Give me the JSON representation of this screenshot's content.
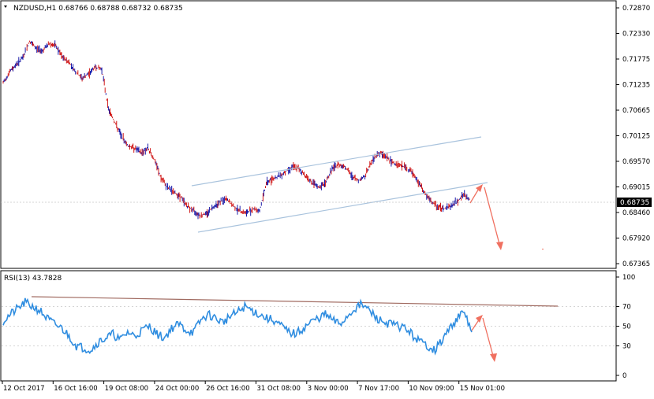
{
  "chart": {
    "symbol_info": "NZDUSD,H1  0.68766 0.68788 0.68732 0.68735",
    "current_price_label": "0.68735",
    "price_axis_ticks": [
      "0.72870",
      "0.72330",
      "0.71775",
      "0.71235",
      "0.70665",
      "0.70125",
      "0.69570",
      "0.69015",
      "0.68460",
      "0.67920",
      "0.67365"
    ],
    "time_axis_ticks": [
      "12 Oct 2017",
      "16 Oct 16:00",
      "19 Oct 08:00",
      "24 Oct 00:00",
      "26 Oct 16:00",
      "31 Oct 08:00",
      "3 Nov 00:00",
      "7 Nov 17:00",
      "10 Nov 09:00",
      "15 Nov 01:00"
    ],
    "colors": {
      "up_bar": "#1a1aa8",
      "down_bar": "#d01818",
      "channel": "#a9c3dd",
      "forecast_arrow": "#f07060",
      "rsi_line": "#2f8de0",
      "rsi_trendline": "#a06a60",
      "grid": "#c8c8c8"
    }
  },
  "rsi": {
    "label": "RSI(13) 43.7828",
    "axis_ticks": [
      "100",
      "70",
      "50",
      "30",
      "0"
    ]
  },
  "chart_data": [
    {
      "type": "line",
      "title": "NZDUSD,H1",
      "series": [
        {
          "values": [
            0.7125,
            0.715,
            0.7165,
            0.718,
            0.7215,
            0.72,
            0.7195,
            0.721,
            0.7205,
            0.718,
            0.717,
            0.715,
            0.7135,
            0.7145,
            0.716,
            0.7155,
            0.707,
            0.704,
            0.701,
            0.699,
            0.6985,
            0.6975,
            0.6985,
            0.696,
            0.692,
            0.69,
            0.689,
            0.688,
            0.686,
            0.685,
            0.684,
            0.6845,
            0.686,
            0.687,
            0.6875,
            0.686,
            0.685,
            0.6845,
            0.6855,
            0.685,
            0.691,
            0.692,
            0.6925,
            0.6935,
            0.6945,
            0.694,
            0.6925,
            0.691,
            0.69,
            0.691,
            0.694,
            0.695,
            0.6945,
            0.6925,
            0.6915,
            0.6925,
            0.6955,
            0.6975,
            0.697,
            0.6955,
            0.695,
            0.6945,
            0.6935,
            0.6915,
            0.689,
            0.687,
            0.686,
            0.6855,
            0.686,
            0.687,
            0.6885,
            0.6875
          ]
        }
      ],
      "ylim": [
        0.67365,
        0.7287
      ]
    },
    {
      "type": "line",
      "title": "RSI(13) 43.7828",
      "series": [
        {
          "values": [
            55,
            62,
            68,
            74,
            70,
            66,
            58,
            52,
            48,
            40,
            30,
            28,
            26,
            34,
            38,
            42,
            36,
            44,
            40,
            46,
            50,
            42,
            38,
            48,
            52,
            46,
            44,
            56,
            62,
            58,
            54,
            60,
            64,
            70,
            66,
            62,
            58,
            56,
            50,
            44,
            42,
            48,
            54,
            58,
            62,
            56,
            52,
            60,
            68,
            72,
            66,
            58,
            54,
            52,
            50,
            48,
            40,
            34,
            30,
            26,
            36,
            48,
            58,
            64,
            44
          ]
        }
      ],
      "ylim": [
        0,
        100
      ]
    }
  ]
}
